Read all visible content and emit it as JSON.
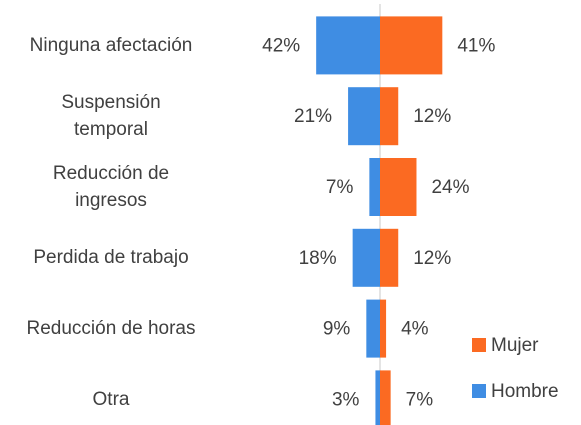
{
  "chart_data": {
    "type": "butterfly",
    "categories": [
      "Ninguna afectación",
      "Suspensión temporal",
      "Reducción de ingresos",
      "Perdida de trabajo",
      "Reducción de horas",
      "Otra"
    ],
    "series": [
      {
        "name": "Hombre",
        "color": "#3f8de3",
        "side": "left",
        "values": [
          42,
          21,
          7,
          18,
          9,
          3
        ],
        "value_labels": [
          "42%",
          "21%",
          "7%",
          "18%",
          "9%",
          "3%"
        ]
      },
      {
        "name": "Mujer",
        "color": "#fb6a22",
        "side": "right",
        "values": [
          41,
          12,
          24,
          12,
          4,
          7
        ],
        "value_labels": [
          "41%",
          "12%",
          "24%",
          "12%",
          "4%",
          "7%"
        ]
      }
    ]
  }
}
